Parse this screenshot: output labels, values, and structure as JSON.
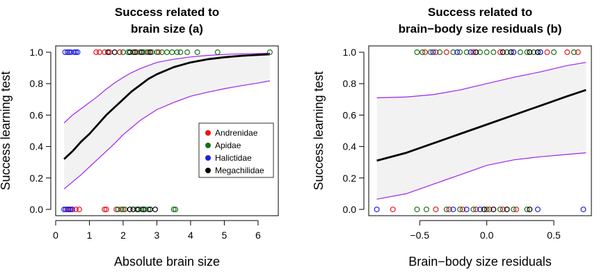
{
  "chart_data": [
    {
      "type": "scatter",
      "panel": "a",
      "title_lines": [
        "Success related to",
        "brain size (a)"
      ],
      "xlabel": "Absolute brain size",
      "ylabel": "Success learning test",
      "xlim": [
        0,
        6.6
      ],
      "ylim": [
        -0.04,
        1.04
      ],
      "xticks": [
        0,
        1,
        2,
        3,
        4,
        5,
        6
      ],
      "xtick_labels": [
        "0",
        "1",
        "2",
        "3",
        "4",
        "5",
        "6"
      ],
      "yticks": [
        0,
        0.2,
        0.4,
        0.6,
        0.8,
        1
      ],
      "ytick_labels": [
        "0.0",
        "0.2",
        "0.4",
        "0.6",
        "0.8",
        "1.0"
      ],
      "fit": {
        "x": [
          0.25,
          0.5,
          0.75,
          1.0,
          1.25,
          1.5,
          1.75,
          2.0,
          2.25,
          2.5,
          2.75,
          3.0,
          3.5,
          4.0,
          4.5,
          5.0,
          5.5,
          6.0,
          6.35
        ],
        "mean": [
          0.32,
          0.37,
          0.43,
          0.48,
          0.54,
          0.6,
          0.65,
          0.7,
          0.75,
          0.79,
          0.83,
          0.86,
          0.905,
          0.935,
          0.955,
          0.968,
          0.977,
          0.983,
          0.987
        ],
        "lower": [
          0.13,
          0.175,
          0.22,
          0.27,
          0.32,
          0.37,
          0.42,
          0.475,
          0.52,
          0.565,
          0.6,
          0.635,
          0.68,
          0.72,
          0.745,
          0.768,
          0.787,
          0.804,
          0.818
        ],
        "upper": [
          0.55,
          0.6,
          0.64,
          0.68,
          0.72,
          0.765,
          0.805,
          0.84,
          0.87,
          0.895,
          0.915,
          0.935,
          0.955,
          0.97,
          0.98,
          0.986,
          0.99,
          0.992,
          0.994
        ]
      },
      "series": [
        {
          "name": "Andrenidae",
          "color": "#e8141a",
          "success": [
            1.2,
            1.3,
            1.45,
            1.6,
            1.9,
            2.4,
            2.75,
            3.05
          ],
          "fail": [
            0.35,
            0.45,
            0.6,
            0.7,
            1.45,
            1.5,
            1.8,
            2.0
          ]
        },
        {
          "name": "Apidae",
          "color": "#1a6e1a",
          "success": [
            2.0,
            2.15,
            2.3,
            2.5,
            2.6,
            2.7,
            2.85,
            3.0,
            3.15,
            3.3,
            3.45,
            3.6,
            3.7,
            3.9,
            4.2,
            4.8,
            6.35
          ],
          "fail": [
            1.85,
            1.95,
            2.05,
            2.4,
            2.55,
            2.65,
            2.75,
            3.5,
            3.55
          ]
        },
        {
          "name": "Halictidae",
          "color": "#1e1ee6",
          "success": [
            0.28,
            0.35,
            0.4,
            0.45,
            0.55,
            0.6,
            0.65
          ],
          "fail": [
            0.25,
            0.3,
            0.38,
            0.42,
            0.5
          ]
        },
        {
          "name": "Megachilidae",
          "color": "#000000",
          "success": [
            1.55,
            1.75,
            2.2,
            2.35,
            2.55,
            2.8
          ],
          "fail": [
            2.2,
            2.3,
            2.45,
            2.6,
            2.8,
            2.95
          ]
        }
      ],
      "legend": [
        "Andrenidae",
        "Apidae",
        "Halictidae",
        "Megachilidae"
      ]
    },
    {
      "type": "scatter",
      "panel": "b",
      "title_lines": [
        "Success related to",
        "brain−body size residuals (b)"
      ],
      "xlabel": "Brain−body size residuals",
      "ylabel": "Success learning test",
      "xlim": [
        -0.88,
        0.78
      ],
      "ylim": [
        -0.04,
        1.04
      ],
      "xticks": [
        -0.5,
        0,
        0.5
      ],
      "xtick_labels": [
        "−0.5",
        "0.0",
        "0.5"
      ],
      "yticks": [
        0,
        0.2,
        0.4,
        0.6,
        0.8,
        1
      ],
      "ytick_labels": [
        "0.0",
        "0.2",
        "0.4",
        "0.6",
        "0.8",
        "1.0"
      ],
      "fit": {
        "x": [
          -0.82,
          -0.6,
          -0.4,
          -0.2,
          0.0,
          0.2,
          0.4,
          0.6,
          0.74
        ],
        "mean": [
          0.31,
          0.36,
          0.42,
          0.48,
          0.54,
          0.6,
          0.66,
          0.72,
          0.76
        ],
        "lower": [
          0.065,
          0.1,
          0.16,
          0.22,
          0.28,
          0.315,
          0.335,
          0.35,
          0.36
        ],
        "upper": [
          0.71,
          0.715,
          0.73,
          0.76,
          0.8,
          0.84,
          0.875,
          0.915,
          0.935
        ]
      },
      "series": [
        {
          "name": "Andrenidae",
          "color": "#e8141a",
          "success": [
            -0.46,
            -0.38,
            -0.3,
            -0.1,
            0.1,
            0.2,
            0.45,
            0.6,
            0.68
          ],
          "fail": [
            -0.7,
            -0.38,
            -0.28,
            -0.18,
            -0.08,
            0.02,
            0.12,
            0.22
          ]
        },
        {
          "name": "Apidae",
          "color": "#1a6e1a",
          "success": [
            -0.52,
            -0.48,
            -0.42,
            -0.35,
            -0.25,
            -0.2,
            -0.15,
            -0.05,
            0.0,
            0.05,
            0.15,
            0.25,
            0.3,
            0.35,
            0.4,
            0.5,
            0.65
          ],
          "fail": [
            -0.52,
            -0.45,
            -0.3,
            -0.2,
            -0.1,
            0.0,
            0.1,
            0.2,
            0.3
          ]
        },
        {
          "name": "Halictidae",
          "color": "#1e1ee6",
          "success": [
            -0.4,
            -0.22,
            -0.12,
            0.2,
            0.4
          ],
          "fail": [
            -0.82,
            -0.25,
            -0.15,
            -0.05,
            0.38,
            0.72
          ]
        },
        {
          "name": "Megachilidae",
          "color": "#000000",
          "success": [
            -0.08,
            0.12,
            0.18,
            0.32,
            0.38
          ],
          "fail": [
            -0.02,
            0.05,
            0.15,
            0.32
          ]
        }
      ],
      "legend": []
    }
  ],
  "colors": {
    "band": "#f2f2f2",
    "ci_line": "#a020f0",
    "fit_line": "#000000"
  }
}
